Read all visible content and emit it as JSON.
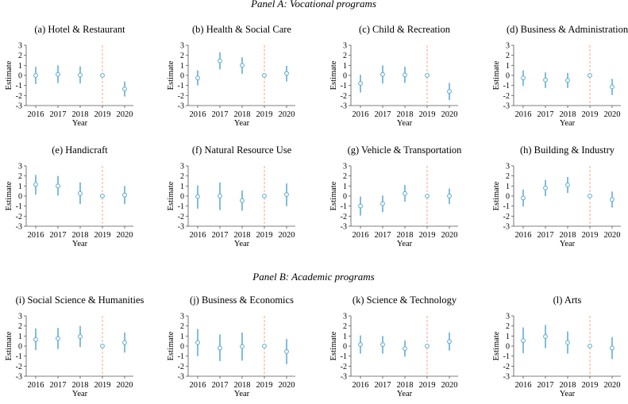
{
  "colors": {
    "series": "#56a9cd",
    "ref_line": "#f0a07a",
    "axis": "#555555",
    "text": "#000000"
  },
  "panel_titles": [
    "Panel A: Vocational programs",
    "Panel B: Academic programs"
  ],
  "chart_data": [
    {
      "type": "scatter",
      "panel": 0,
      "title": "(a) Hotel & Restaurant",
      "xlabel": "Year",
      "ylabel": "Estimate",
      "categories": [
        "2016",
        "2017",
        "2018",
        "2019",
        "2020"
      ],
      "estimates": [
        0.0,
        0.1,
        0.05,
        0.0,
        -1.35
      ],
      "ci_low": [
        -0.85,
        -0.75,
        -0.8,
        0.0,
        -2.1
      ],
      "ci_high": [
        0.85,
        1.0,
        0.9,
        0.0,
        -0.6
      ],
      "reference": "2019",
      "ylim": [
        -3,
        3
      ],
      "yticks": [
        "3",
        "2",
        "1",
        "0",
        "-1",
        "-2",
        "-3"
      ]
    },
    {
      "type": "scatter",
      "panel": 0,
      "title": "(b) Health & Social Care",
      "xlabel": "Year",
      "ylabel": "Estimate",
      "categories": [
        "2016",
        "2017",
        "2018",
        "2019",
        "2020"
      ],
      "estimates": [
        -0.25,
        1.45,
        1.0,
        0.0,
        0.2
      ],
      "ci_low": [
        -1.0,
        0.6,
        0.15,
        0.0,
        -0.6
      ],
      "ci_high": [
        0.5,
        2.3,
        1.8,
        0.0,
        0.95
      ],
      "reference": "2019",
      "ylim": [
        -3,
        3
      ],
      "yticks": [
        "3",
        "2",
        "1",
        "0",
        "-1",
        "-2",
        "-3"
      ]
    },
    {
      "type": "scatter",
      "panel": 0,
      "title": "(c) Child & Recreation",
      "xlabel": "Year",
      "ylabel": "Estimate",
      "categories": [
        "2016",
        "2017",
        "2018",
        "2019",
        "2020"
      ],
      "estimates": [
        -0.8,
        0.1,
        0.05,
        0.0,
        -1.6
      ],
      "ci_low": [
        -1.7,
        -0.8,
        -0.75,
        0.0,
        -2.45
      ],
      "ci_high": [
        0.05,
        1.0,
        0.85,
        0.0,
        -0.75
      ],
      "reference": "2019",
      "ylim": [
        -3,
        3
      ],
      "yticks": [
        "3",
        "2",
        "1",
        "0",
        "-1",
        "-2",
        "-3"
      ]
    },
    {
      "type": "scatter",
      "panel": 0,
      "title": "(d) Business & Administration",
      "xlabel": "Year",
      "ylabel": "Estimate",
      "categories": [
        "2016",
        "2017",
        "2018",
        "2019",
        "2020"
      ],
      "estimates": [
        -0.25,
        -0.45,
        -0.5,
        0.0,
        -1.15
      ],
      "ci_low": [
        -1.05,
        -1.25,
        -1.25,
        0.0,
        -1.95
      ],
      "ci_high": [
        0.5,
        0.3,
        0.25,
        0.0,
        -0.35
      ],
      "reference": "2019",
      "ylim": [
        -3,
        3
      ],
      "yticks": [
        "3",
        "2",
        "1",
        "0",
        "-1",
        "-2",
        "-3"
      ]
    },
    {
      "type": "scatter",
      "panel": 0,
      "title": "(e) Handicraft",
      "xlabel": "Year",
      "ylabel": "Estimate",
      "categories": [
        "2016",
        "2017",
        "2018",
        "2019",
        "2020"
      ],
      "estimates": [
        1.15,
        1.0,
        0.25,
        0.0,
        0.1
      ],
      "ci_low": [
        0.15,
        0.05,
        -0.8,
        0.0,
        -0.8
      ],
      "ci_high": [
        2.1,
        2.0,
        1.35,
        0.0,
        1.0
      ],
      "reference": "2019",
      "ylim": [
        -3,
        3
      ],
      "yticks": [
        "3",
        "2",
        "1",
        "0",
        "-1",
        "-2",
        "-3"
      ]
    },
    {
      "type": "scatter",
      "panel": 0,
      "title": "(f) Natural Resource Use",
      "xlabel": "Year",
      "ylabel": "Estimate",
      "categories": [
        "2016",
        "2017",
        "2018",
        "2019",
        "2020"
      ],
      "estimates": [
        -0.05,
        0.0,
        -0.45,
        0.0,
        0.15
      ],
      "ci_low": [
        -1.25,
        -1.4,
        -1.45,
        0.0,
        -1.0
      ],
      "ci_high": [
        1.05,
        1.35,
        0.55,
        0.0,
        1.25
      ],
      "reference": "2019",
      "ylim": [
        -3,
        3
      ],
      "yticks": [
        "3",
        "2",
        "1",
        "0",
        "-1",
        "-2",
        "-3"
      ]
    },
    {
      "type": "scatter",
      "panel": 0,
      "title": "(g) Vehicle & Transportation",
      "xlabel": "Year",
      "ylabel": "Estimate",
      "categories": [
        "2016",
        "2017",
        "2018",
        "2019",
        "2020"
      ],
      "estimates": [
        -1.0,
        -0.75,
        0.25,
        0.0,
        0.0
      ],
      "ci_low": [
        -1.95,
        -1.6,
        -0.55,
        0.0,
        -0.8
      ],
      "ci_high": [
        -0.05,
        0.05,
        1.1,
        0.0,
        0.75
      ],
      "reference": "2019",
      "ylim": [
        -3,
        3
      ],
      "yticks": [
        "3",
        "2",
        "1",
        "0",
        "-1",
        "-2",
        "-3"
      ]
    },
    {
      "type": "scatter",
      "panel": 0,
      "title": "(h) Building & Industry",
      "xlabel": "Year",
      "ylabel": "Estimate",
      "categories": [
        "2016",
        "2017",
        "2018",
        "2019",
        "2020"
      ],
      "estimates": [
        -0.2,
        0.8,
        1.1,
        0.0,
        -0.35
      ],
      "ci_low": [
        -1.05,
        0.0,
        0.3,
        0.0,
        -1.15
      ],
      "ci_high": [
        0.65,
        1.6,
        1.9,
        0.0,
        0.45
      ],
      "reference": "2019",
      "ylim": [
        -3,
        3
      ],
      "yticks": [
        "3",
        "2",
        "1",
        "0",
        "-1",
        "-2",
        "-3"
      ]
    },
    {
      "type": "scatter",
      "panel": 1,
      "title": "(i) Social Science & Humanities",
      "xlabel": "Year",
      "ylabel": "Estimate",
      "categories": [
        "2016",
        "2017",
        "2018",
        "2019",
        "2020"
      ],
      "estimates": [
        0.65,
        0.75,
        0.95,
        0.0,
        0.35
      ],
      "ci_low": [
        -0.4,
        -0.3,
        -0.1,
        0.0,
        -0.65
      ],
      "ci_high": [
        1.75,
        1.8,
        2.0,
        0.0,
        1.35
      ],
      "reference": "2019",
      "ylim": [
        -3,
        3
      ],
      "yticks": [
        "3",
        "2",
        "1",
        "0",
        "-1",
        "-2",
        "-3"
      ]
    },
    {
      "type": "scatter",
      "panel": 1,
      "title": "(j) Business & Economics",
      "xlabel": "Year",
      "ylabel": "Estimate",
      "categories": [
        "2016",
        "2017",
        "2018",
        "2019",
        "2020"
      ],
      "estimates": [
        0.35,
        -0.2,
        -0.05,
        0.0,
        -0.55
      ],
      "ci_low": [
        -1.0,
        -1.5,
        -1.45,
        0.0,
        -1.8
      ],
      "ci_high": [
        1.7,
        1.15,
        1.35,
        0.0,
        0.7
      ],
      "reference": "2019",
      "ylim": [
        -3,
        3
      ],
      "yticks": [
        "3",
        "2",
        "1",
        "0",
        "-1",
        "-2",
        "-3"
      ]
    },
    {
      "type": "scatter",
      "panel": 1,
      "title": "(k) Science & Technology",
      "xlabel": "Year",
      "ylabel": "Estimate",
      "categories": [
        "2016",
        "2017",
        "2018",
        "2019",
        "2020"
      ],
      "estimates": [
        0.15,
        0.15,
        -0.25,
        0.0,
        0.45
      ],
      "ci_low": [
        -0.75,
        -0.75,
        -1.05,
        0.0,
        -0.45
      ],
      "ci_high": [
        1.05,
        1.0,
        0.55,
        0.0,
        1.35
      ],
      "reference": "2019",
      "ylim": [
        -3,
        3
      ],
      "yticks": [
        "3",
        "2",
        "1",
        "0",
        "-1",
        "-2",
        "-3"
      ]
    },
    {
      "type": "scatter",
      "panel": 1,
      "title": "(l) Arts",
      "xlabel": "Year",
      "ylabel": "Estimate",
      "categories": [
        "2016",
        "2017",
        "2018",
        "2019",
        "2020"
      ],
      "estimates": [
        0.55,
        0.95,
        0.35,
        0.0,
        -0.2
      ],
      "ci_low": [
        -0.7,
        -0.2,
        -0.75,
        0.0,
        -1.3
      ],
      "ci_high": [
        1.85,
        2.1,
        1.45,
        0.0,
        0.9
      ],
      "reference": "2019",
      "ylim": [
        -3,
        3
      ],
      "yticks": [
        "3",
        "2",
        "1",
        "0",
        "-1",
        "-2",
        "-3"
      ]
    }
  ]
}
